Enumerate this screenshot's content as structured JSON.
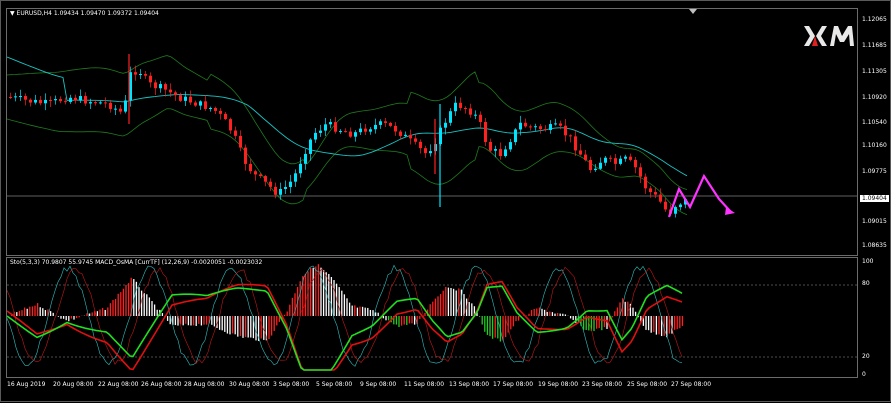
{
  "main": {
    "symbol_header": "EURUSD,H4  1.09434 1.09470 1.09372 1.09404",
    "current_price_label": "1.09404",
    "price_ticks": [
      "1.12065",
      "1.11685",
      "1.11305",
      "1.10920",
      "1.10540",
      "1.10160",
      "1.09775",
      "1.09015",
      "1.08635"
    ],
    "logo_text": "XM"
  },
  "oscillator": {
    "header": "Sto(5,3,3) 70.9807 55.9745  MACD_OsMA [CurrTF] (12,26,9) -0.0020051 -0.0023032",
    "ticks": [
      "100",
      "80",
      "20",
      "0"
    ]
  },
  "time_axis": {
    "labels": [
      "16 Aug 2019",
      "20 Aug 08:00",
      "22 Aug 08:00",
      "26 Aug 08:00",
      "28 Aug 08:00",
      "30 Aug 08:00",
      "3 Sep 08:00",
      "5 Sep 08:00",
      "9 Sep 08:00",
      "11 Sep 08:00",
      "13 Sep 08:00",
      "17 Sep 08:00",
      "19 Sep 08:00",
      "23 Sep 08:00",
      "25 Sep 08:00",
      "27 Sep 08:00"
    ]
  },
  "colors": {
    "bull_candle": "#00e5ff",
    "bear_candle": "#ff2020",
    "bollinger": "#1f7a1f",
    "ma_line": "#19c3c3",
    "projection_arrow": "#ff33ff",
    "stoch_main": "#20e020",
    "stoch_signal": "#e01010",
    "hist_up": "#ffffff",
    "hist_down": "#ff2020",
    "hist_green": "#20d020"
  }
}
